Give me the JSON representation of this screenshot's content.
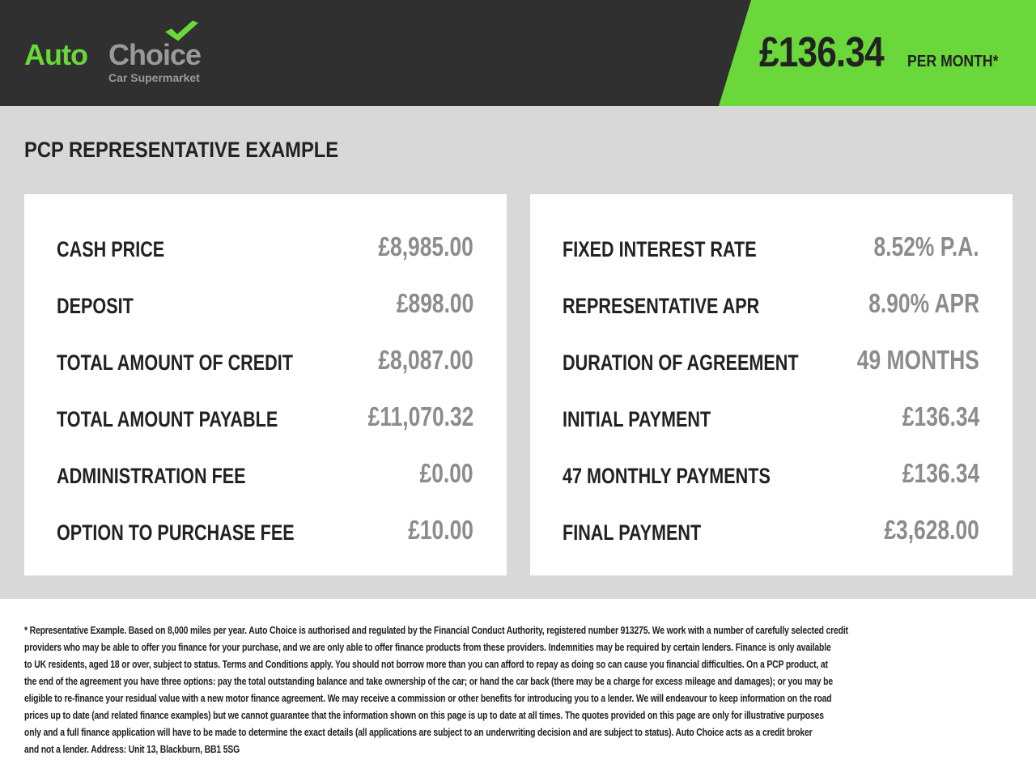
{
  "brand": {
    "name_part1": "Auto",
    "name_part2": "Choice",
    "tagline": "Car Supermarket",
    "colors": {
      "green": "#6ad83a",
      "dark": "#303030",
      "gray": "#9a9a9a"
    }
  },
  "header": {
    "monthly_price": "£136.34",
    "per_month_label": "PER MONTH*"
  },
  "title": "PCP REPRESENTATIVE EXAMPLE",
  "left_card": [
    {
      "label": "CASH PRICE",
      "value": "£8,985.00"
    },
    {
      "label": "DEPOSIT",
      "value": "£898.00"
    },
    {
      "label": "TOTAL AMOUNT OF CREDIT",
      "value": "£8,087.00"
    },
    {
      "label": "TOTAL AMOUNT PAYABLE",
      "value": "£11,070.32"
    },
    {
      "label": "ADMINISTRATION FEE",
      "value": "£0.00"
    },
    {
      "label": "OPTION TO PURCHASE FEE",
      "value": "£10.00"
    }
  ],
  "right_card": [
    {
      "label": "FIXED INTEREST RATE",
      "value": "8.52% P.A."
    },
    {
      "label": "REPRESENTATIVE APR",
      "value": "8.90% APR"
    },
    {
      "label": "DURATION OF AGREEMENT",
      "value": "49 MONTHS"
    },
    {
      "label": "INITIAL PAYMENT",
      "value": "£136.34"
    },
    {
      "label": "47 MONTHLY PAYMENTS",
      "value": "£136.34"
    },
    {
      "label": "FINAL PAYMENT",
      "value": "£3,628.00"
    }
  ],
  "disclaimer_lines": [
    "* Representative Example. Based on 8,000 miles per year. Auto Choice is authorised and regulated by the Financial Conduct Authority, registered number 913275. We work with a number of carefully selected credit",
    "providers who may be able to offer you finance for your purchase, and we are only able to offer finance products from these providers. Indemnities may be required by certain lenders. Finance is only available",
    "to UK residents, aged 18 or over, subject to status. Terms and Conditions apply. You should not borrow more than you can afford to repay as doing so can cause you financial difficulties. On a PCP product, at",
    "the end of the agreement you have three options: pay the total outstanding balance and take ownership of the car; or hand the car back (there may be a charge for excess mileage and damages); or you may be",
    "eligible to re-finance your residual value with a new motor finance agreement. We may receive a commission or other benefits for introducing you to a lender. We will endeavour to keep information on the road",
    "prices up to date (and related finance examples) but we cannot guarantee that the information shown on this page is up to date at all times. The quotes provided on this page are only for illustrative purposes",
    "only and a full finance application will have to be made to determine the exact details (all applications are subject to an underwriting decision and are subject to status). Auto Choice acts as a credit broker",
    "and not a lender. Address: Unit 13, Blackburn, BB1 5SG"
  ]
}
